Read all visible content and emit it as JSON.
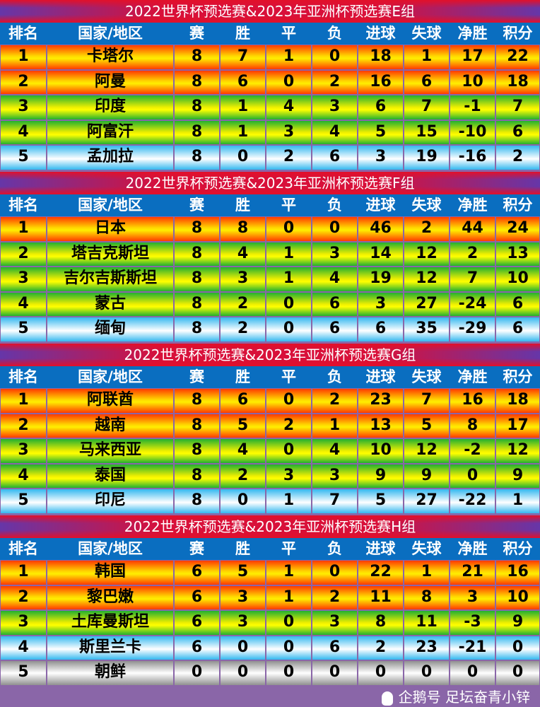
{
  "headers": [
    "排名",
    "国家/地区",
    "赛",
    "胜",
    "平",
    "负",
    "进球",
    "失球",
    "净胜",
    "积分"
  ],
  "band_colors": {
    "orange": "#ff3a00",
    "green": "#22b030",
    "blue": "#34b8f0",
    "silver": "#909090",
    "header": "#0a6ec0",
    "title": "#d8103a"
  },
  "groups": [
    {
      "title": "2022世界杯预选赛&2023年亚洲杯预选赛E组",
      "rows": [
        {
          "band": "orange",
          "cells": [
            "1",
            "卡塔尔",
            "8",
            "7",
            "1",
            "0",
            "18",
            "1",
            "17",
            "22"
          ]
        },
        {
          "band": "orange",
          "cells": [
            "2",
            "阿曼",
            "8",
            "6",
            "0",
            "2",
            "16",
            "6",
            "10",
            "18"
          ]
        },
        {
          "band": "green",
          "cells": [
            "3",
            "印度",
            "8",
            "1",
            "4",
            "3",
            "6",
            "7",
            "-1",
            "7"
          ]
        },
        {
          "band": "green",
          "cells": [
            "4",
            "阿富汗",
            "8",
            "1",
            "3",
            "4",
            "5",
            "15",
            "-10",
            "6"
          ]
        },
        {
          "band": "blue",
          "cells": [
            "5",
            "孟加拉",
            "8",
            "0",
            "2",
            "6",
            "3",
            "19",
            "-16",
            "2"
          ]
        }
      ]
    },
    {
      "title": "2022世界杯预选赛&2023年亚洲杯预选赛F组",
      "rows": [
        {
          "band": "orange",
          "cells": [
            "1",
            "日本",
            "8",
            "8",
            "0",
            "0",
            "46",
            "2",
            "44",
            "24"
          ]
        },
        {
          "band": "green",
          "cells": [
            "2",
            "塔吉克斯坦",
            "8",
            "4",
            "1",
            "3",
            "14",
            "12",
            "2",
            "13"
          ]
        },
        {
          "band": "green",
          "cells": [
            "3",
            "吉尔吉斯斯坦",
            "8",
            "3",
            "1",
            "4",
            "19",
            "12",
            "7",
            "10"
          ]
        },
        {
          "band": "green",
          "cells": [
            "4",
            "蒙古",
            "8",
            "2",
            "0",
            "6",
            "3",
            "27",
            "-24",
            "6"
          ]
        },
        {
          "band": "blue",
          "cells": [
            "5",
            "缅甸",
            "8",
            "2",
            "0",
            "6",
            "6",
            "35",
            "-29",
            "6"
          ]
        }
      ]
    },
    {
      "title": "2022世界杯预选赛&2023年亚洲杯预选赛G组",
      "rows": [
        {
          "band": "orange",
          "cells": [
            "1",
            "阿联酋",
            "8",
            "6",
            "0",
            "2",
            "23",
            "7",
            "16",
            "18"
          ]
        },
        {
          "band": "orange",
          "cells": [
            "2",
            "越南",
            "8",
            "5",
            "2",
            "1",
            "13",
            "5",
            "8",
            "17"
          ]
        },
        {
          "band": "green",
          "cells": [
            "3",
            "马来西亚",
            "8",
            "4",
            "0",
            "4",
            "10",
            "12",
            "-2",
            "12"
          ]
        },
        {
          "band": "green",
          "cells": [
            "4",
            "泰国",
            "8",
            "2",
            "3",
            "3",
            "9",
            "9",
            "0",
            "9"
          ]
        },
        {
          "band": "blue",
          "cells": [
            "5",
            "印尼",
            "8",
            "0",
            "1",
            "7",
            "5",
            "27",
            "-22",
            "1"
          ]
        }
      ]
    },
    {
      "title": "2022世界杯预选赛&2023年亚洲杯预选赛H组",
      "rows": [
        {
          "band": "orange",
          "cells": [
            "1",
            "韩国",
            "6",
            "5",
            "1",
            "0",
            "22",
            "1",
            "21",
            "16"
          ]
        },
        {
          "band": "orange",
          "cells": [
            "2",
            "黎巴嫩",
            "6",
            "3",
            "1",
            "2",
            "11",
            "8",
            "3",
            "10"
          ]
        },
        {
          "band": "green",
          "cells": [
            "3",
            "土库曼斯坦",
            "6",
            "3",
            "0",
            "3",
            "8",
            "11",
            "-3",
            "9"
          ]
        },
        {
          "band": "blue",
          "cells": [
            "4",
            "斯里兰卡",
            "6",
            "0",
            "0",
            "6",
            "2",
            "23",
            "-21",
            "0"
          ]
        },
        {
          "band": "silver",
          "cells": [
            "5",
            "朝鲜",
            "0",
            "0",
            "0",
            "0",
            "0",
            "0",
            "0",
            "0"
          ]
        }
      ]
    }
  ],
  "watermark": "企鹅号 足坛奋青小锌"
}
